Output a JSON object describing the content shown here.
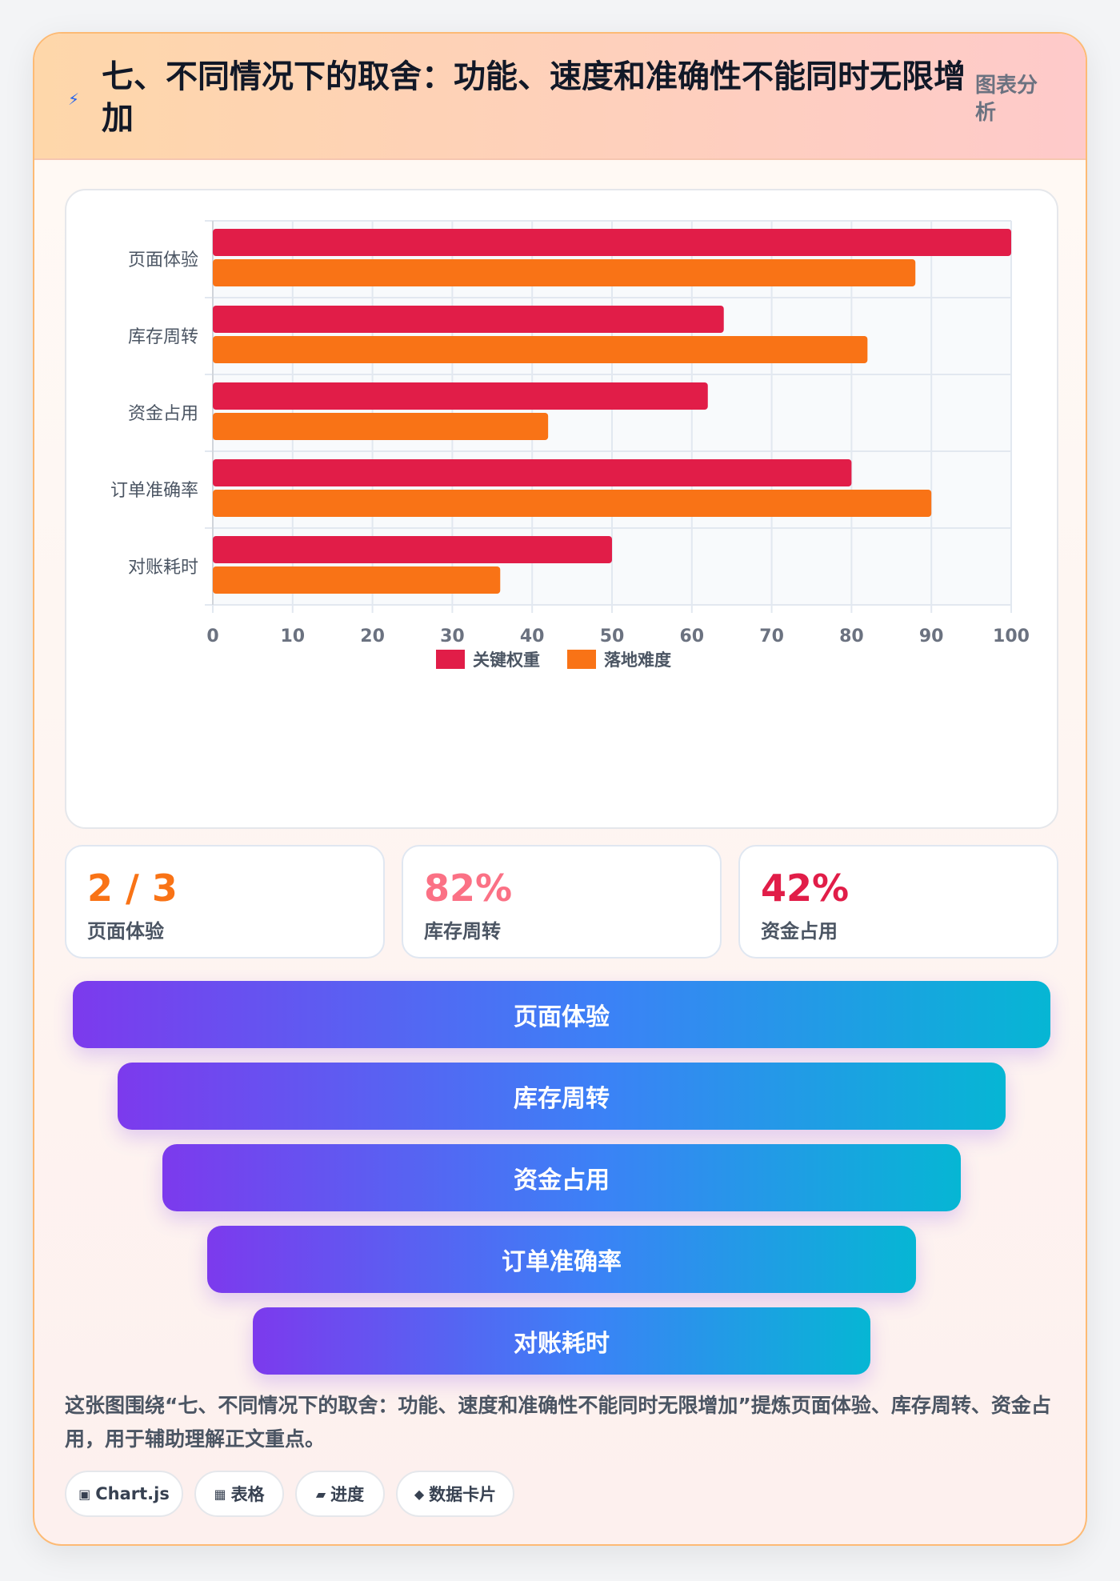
{
  "header": {
    "icon": "lightning-icon",
    "title": "七、不同情况下的取舍：功能、速度和准确性不能同时无限增加",
    "tag": "图表分析"
  },
  "chart_data": {
    "type": "bar",
    "orientation": "horizontal",
    "categories": [
      "页面体验",
      "库存周转",
      "资金占用",
      "订单准确率",
      "对账耗时"
    ],
    "series": [
      {
        "name": "关键权重",
        "color": "#e11d48",
        "values": [
          100,
          64,
          62,
          80,
          50
        ]
      },
      {
        "name": "落地难度",
        "color": "#f97316",
        "values": [
          88,
          82,
          42,
          90,
          36
        ]
      }
    ],
    "xlim": [
      0,
      100
    ],
    "xticks": [
      0,
      10,
      20,
      30,
      40,
      50,
      60,
      70,
      80,
      90,
      100
    ],
    "grid": true,
    "legend_position": "bottom"
  },
  "stats": [
    {
      "value": "2 / 3",
      "label": "页面体验",
      "color": "#f97316"
    },
    {
      "value": "82%",
      "label": "库存周转",
      "color": "#fb7185"
    },
    {
      "value": "42%",
      "label": "资金占用",
      "color": "#e11d48"
    }
  ],
  "funnel": [
    "页面体验",
    "库存周转",
    "资金占用",
    "订单准确率",
    "对账耗时"
  ],
  "description": "这张图围绕“七、不同情况下的取舍：功能、速度和准确性不能同时无限增加”提炼页面体验、库存周转、资金占用，用于辅助理解正文重点。",
  "chips": [
    {
      "icon": "chart-icon",
      "glyph": "▣",
      "label": "Chart.js"
    },
    {
      "icon": "table-icon",
      "glyph": "▦",
      "label": "表格"
    },
    {
      "icon": "progress-icon",
      "glyph": "▰",
      "label": "进度"
    },
    {
      "icon": "diamond-icon",
      "glyph": "◆",
      "label": "数据卡片"
    }
  ]
}
